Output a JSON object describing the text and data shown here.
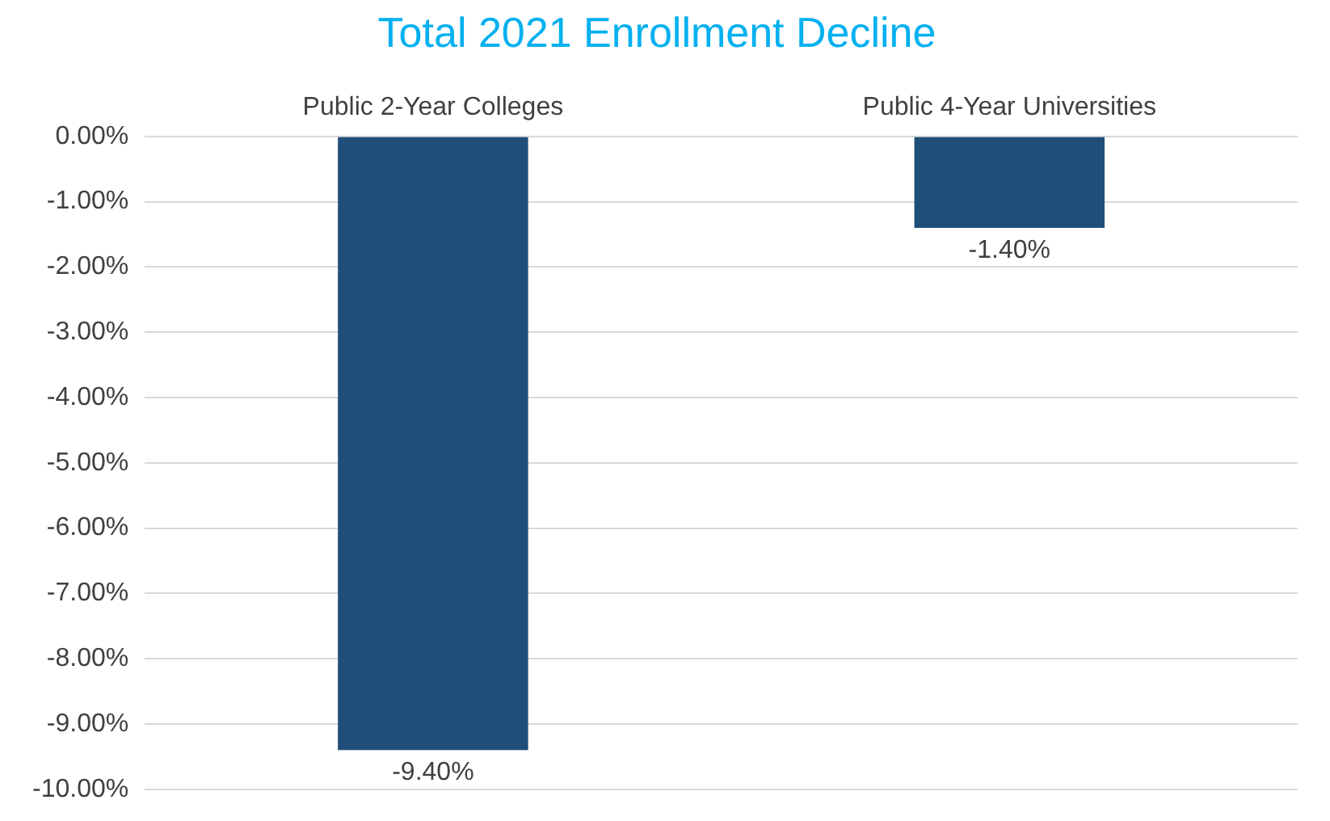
{
  "chart_data": {
    "type": "bar",
    "title": "Total 2021 Enrollment Decline",
    "categories": [
      "Public 2-Year Colleges",
      "Public 4-Year Universities"
    ],
    "values": [
      -9.4,
      -1.4
    ],
    "color": "#1f4e79",
    "value_labels": [
      "-9.40%",
      "-1.40%"
    ],
    "ylim": [
      -10,
      0
    ],
    "yticks": [
      {
        "value": 0,
        "label": "0.00%"
      },
      {
        "value": -1,
        "label": "-1.00%"
      },
      {
        "value": -2,
        "label": "-2.00%"
      },
      {
        "value": -3,
        "label": "-3.00%"
      },
      {
        "value": -4,
        "label": "-4.00%"
      },
      {
        "value": -5,
        "label": "-5.00%"
      },
      {
        "value": -6,
        "label": "-6.00%"
      },
      {
        "value": -7,
        "label": "-7.00%"
      },
      {
        "value": -8,
        "label": "-8.00%"
      },
      {
        "value": -9,
        "label": "-9.00%"
      },
      {
        "value": -10,
        "label": "-10.00%"
      }
    ],
    "grid": "y",
    "legend": false
  }
}
